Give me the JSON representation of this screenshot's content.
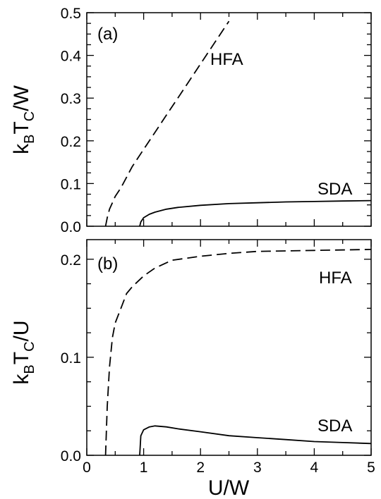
{
  "chart_data": [
    {
      "type": "line",
      "panel_label": "(a)",
      "xlabel": "",
      "ylabel": {
        "main": "k",
        "sub1": "B",
        "mid": "T",
        "sub2": "C",
        "tail": "/W"
      },
      "xlim": [
        0,
        5
      ],
      "ylim": [
        0,
        0.5
      ],
      "yticks": [
        "0.0",
        "0.1",
        "0.2",
        "0.3",
        "0.4",
        "0.5"
      ],
      "grid": false,
      "series": [
        {
          "name": "HFA",
          "style": "dashed",
          "x": [
            0.33,
            0.36,
            0.4,
            0.45,
            0.5,
            0.6,
            0.8,
            1.0,
            1.2,
            1.4,
            1.6,
            1.8,
            2.0,
            2.2,
            2.4,
            2.5
          ],
          "y": [
            0.0,
            0.02,
            0.04,
            0.055,
            0.07,
            0.09,
            0.14,
            0.18,
            0.22,
            0.26,
            0.3,
            0.34,
            0.38,
            0.42,
            0.46,
            0.48
          ]
        },
        {
          "name": "SDA",
          "style": "solid",
          "x": [
            0.93,
            0.95,
            1.0,
            1.1,
            1.2,
            1.4,
            1.6,
            2.0,
            2.5,
            3.0,
            3.5,
            4.0,
            4.5,
            5.0
          ],
          "y": [
            0.0,
            0.01,
            0.02,
            0.028,
            0.033,
            0.04,
            0.044,
            0.049,
            0.053,
            0.055,
            0.057,
            0.058,
            0.059,
            0.06
          ]
        }
      ]
    },
    {
      "type": "line",
      "panel_label": "(b)",
      "xlabel": "U/W",
      "ylabel": {
        "main": "k",
        "sub1": "B",
        "mid": "T",
        "sub2": "C",
        "tail": "/U"
      },
      "xlim": [
        0,
        5
      ],
      "ylim": [
        0,
        0.22
      ],
      "yticks": [
        "0.0",
        "0.1",
        "0.2"
      ],
      "xticks": [
        "0",
        "1",
        "2",
        "3",
        "4",
        "5"
      ],
      "grid": false,
      "series": [
        {
          "name": "HFA",
          "style": "dashed",
          "x": [
            0.33,
            0.36,
            0.4,
            0.45,
            0.5,
            0.6,
            0.7,
            0.8,
            1.0,
            1.2,
            1.5,
            2.0,
            2.5,
            3.0,
            4.0,
            5.0
          ],
          "y": [
            0.0,
            0.05,
            0.09,
            0.12,
            0.135,
            0.15,
            0.165,
            0.172,
            0.183,
            0.191,
            0.199,
            0.203,
            0.206,
            0.208,
            0.209,
            0.21
          ]
        },
        {
          "name": "SDA",
          "style": "solid",
          "x": [
            0.93,
            0.95,
            1.0,
            1.1,
            1.2,
            1.4,
            1.6,
            2.0,
            2.5,
            3.0,
            3.5,
            4.0,
            4.5,
            5.0
          ],
          "y": [
            0.0,
            0.02,
            0.026,
            0.029,
            0.03,
            0.029,
            0.027,
            0.024,
            0.02,
            0.018,
            0.016,
            0.014,
            0.013,
            0.012
          ]
        }
      ]
    }
  ]
}
